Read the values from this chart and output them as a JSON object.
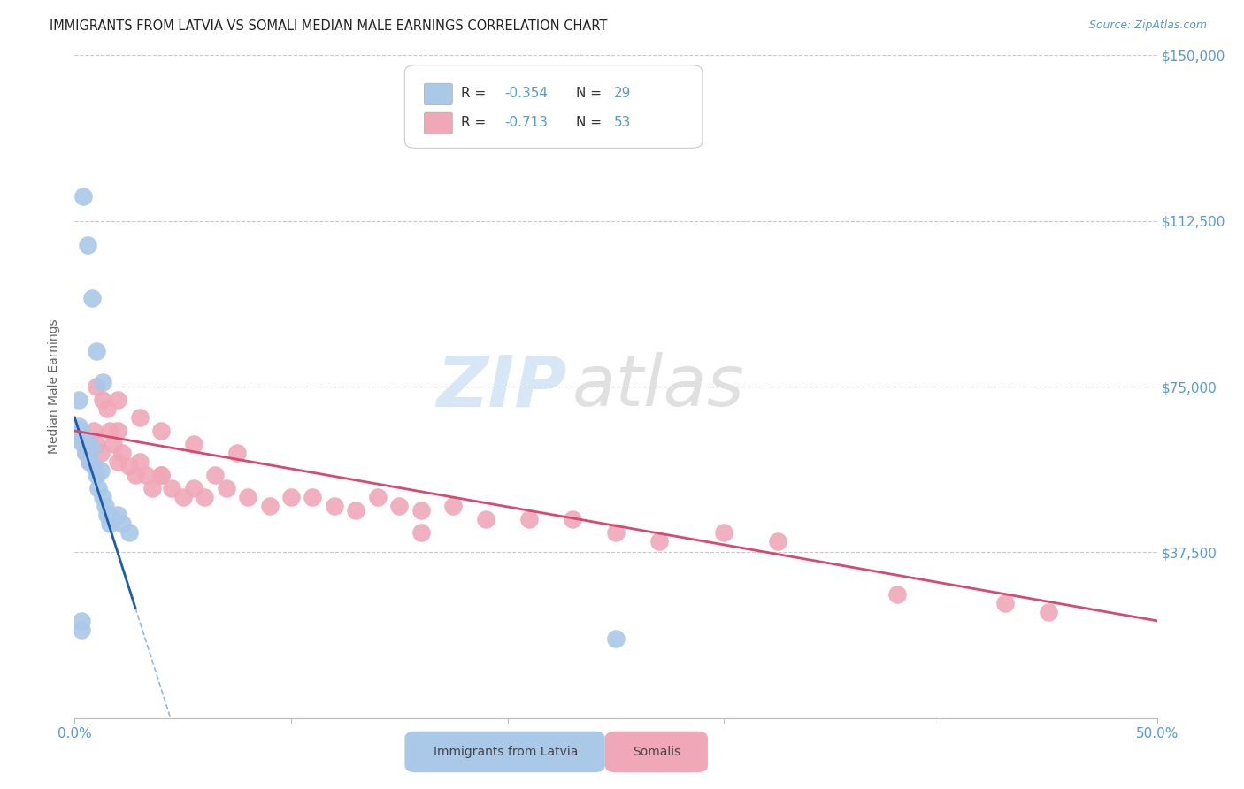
{
  "title": "IMMIGRANTS FROM LATVIA VS SOMALI MEDIAN MALE EARNINGS CORRELATION CHART",
  "source": "Source: ZipAtlas.com",
  "ylabel": "Median Male Earnings",
  "xlim": [
    0.0,
    0.5
  ],
  "ylim": [
    0,
    150000
  ],
  "yticks": [
    0,
    37500,
    75000,
    112500,
    150000
  ],
  "ytick_labels": [
    "",
    "$37,500",
    "$75,000",
    "$112,500",
    "$150,000"
  ],
  "xticks": [
    0.0,
    0.1,
    0.2,
    0.3,
    0.4,
    0.5
  ],
  "xtick_labels": [
    "0.0%",
    "",
    "",
    "",
    "",
    "50.0%"
  ],
  "R_latvia": -0.354,
  "N_latvia": 29,
  "R_somali": -0.713,
  "N_somali": 53,
  "background_color": "#ffffff",
  "grid_color": "#c8c8c8",
  "latvia_color": "#aac8e8",
  "somali_color": "#f0a8b8",
  "latvia_line_color": "#1c5ca8",
  "somali_line_color": "#d84870",
  "title_color": "#222222",
  "axis_label_color": "#666666",
  "tick_color": "#5599dd",
  "watermark_zip": "ZIP",
  "watermark_atlas": "atlas",
  "latvia_x": [
    0.001,
    0.002,
    0.003,
    0.004,
    0.005,
    0.006,
    0.007,
    0.008,
    0.009,
    0.01,
    0.011,
    0.012,
    0.013,
    0.014,
    0.015,
    0.016,
    0.018,
    0.02,
    0.022,
    0.025,
    0.004,
    0.006,
    0.008,
    0.01,
    0.013,
    0.002,
    0.003,
    0.003,
    0.25
  ],
  "latvia_y": [
    63000,
    66000,
    65000,
    62000,
    60000,
    63000,
    58000,
    61000,
    57000,
    55000,
    52000,
    56000,
    50000,
    48000,
    46000,
    44000,
    45000,
    46000,
    44000,
    42000,
    118000,
    107000,
    95000,
    83000,
    76000,
    72000,
    20000,
    22000,
    18000
  ],
  "somali_x": [
    0.003,
    0.005,
    0.007,
    0.009,
    0.01,
    0.012,
    0.013,
    0.015,
    0.016,
    0.018,
    0.02,
    0.022,
    0.025,
    0.028,
    0.03,
    0.033,
    0.036,
    0.04,
    0.045,
    0.05,
    0.055,
    0.06,
    0.065,
    0.07,
    0.08,
    0.09,
    0.1,
    0.11,
    0.12,
    0.13,
    0.14,
    0.15,
    0.16,
    0.175,
    0.19,
    0.21,
    0.23,
    0.25,
    0.27,
    0.3,
    0.325,
    0.01,
    0.02,
    0.03,
    0.04,
    0.055,
    0.075,
    0.16,
    0.38,
    0.43,
    0.45,
    0.02,
    0.04
  ],
  "somali_y": [
    63000,
    60000,
    58000,
    65000,
    62000,
    60000,
    72000,
    70000,
    65000,
    62000,
    65000,
    60000,
    57000,
    55000,
    58000,
    55000,
    52000,
    55000,
    52000,
    50000,
    52000,
    50000,
    55000,
    52000,
    50000,
    48000,
    50000,
    50000,
    48000,
    47000,
    50000,
    48000,
    47000,
    48000,
    45000,
    45000,
    45000,
    42000,
    40000,
    42000,
    40000,
    75000,
    72000,
    68000,
    65000,
    62000,
    60000,
    42000,
    28000,
    26000,
    24000,
    58000,
    55000
  ]
}
